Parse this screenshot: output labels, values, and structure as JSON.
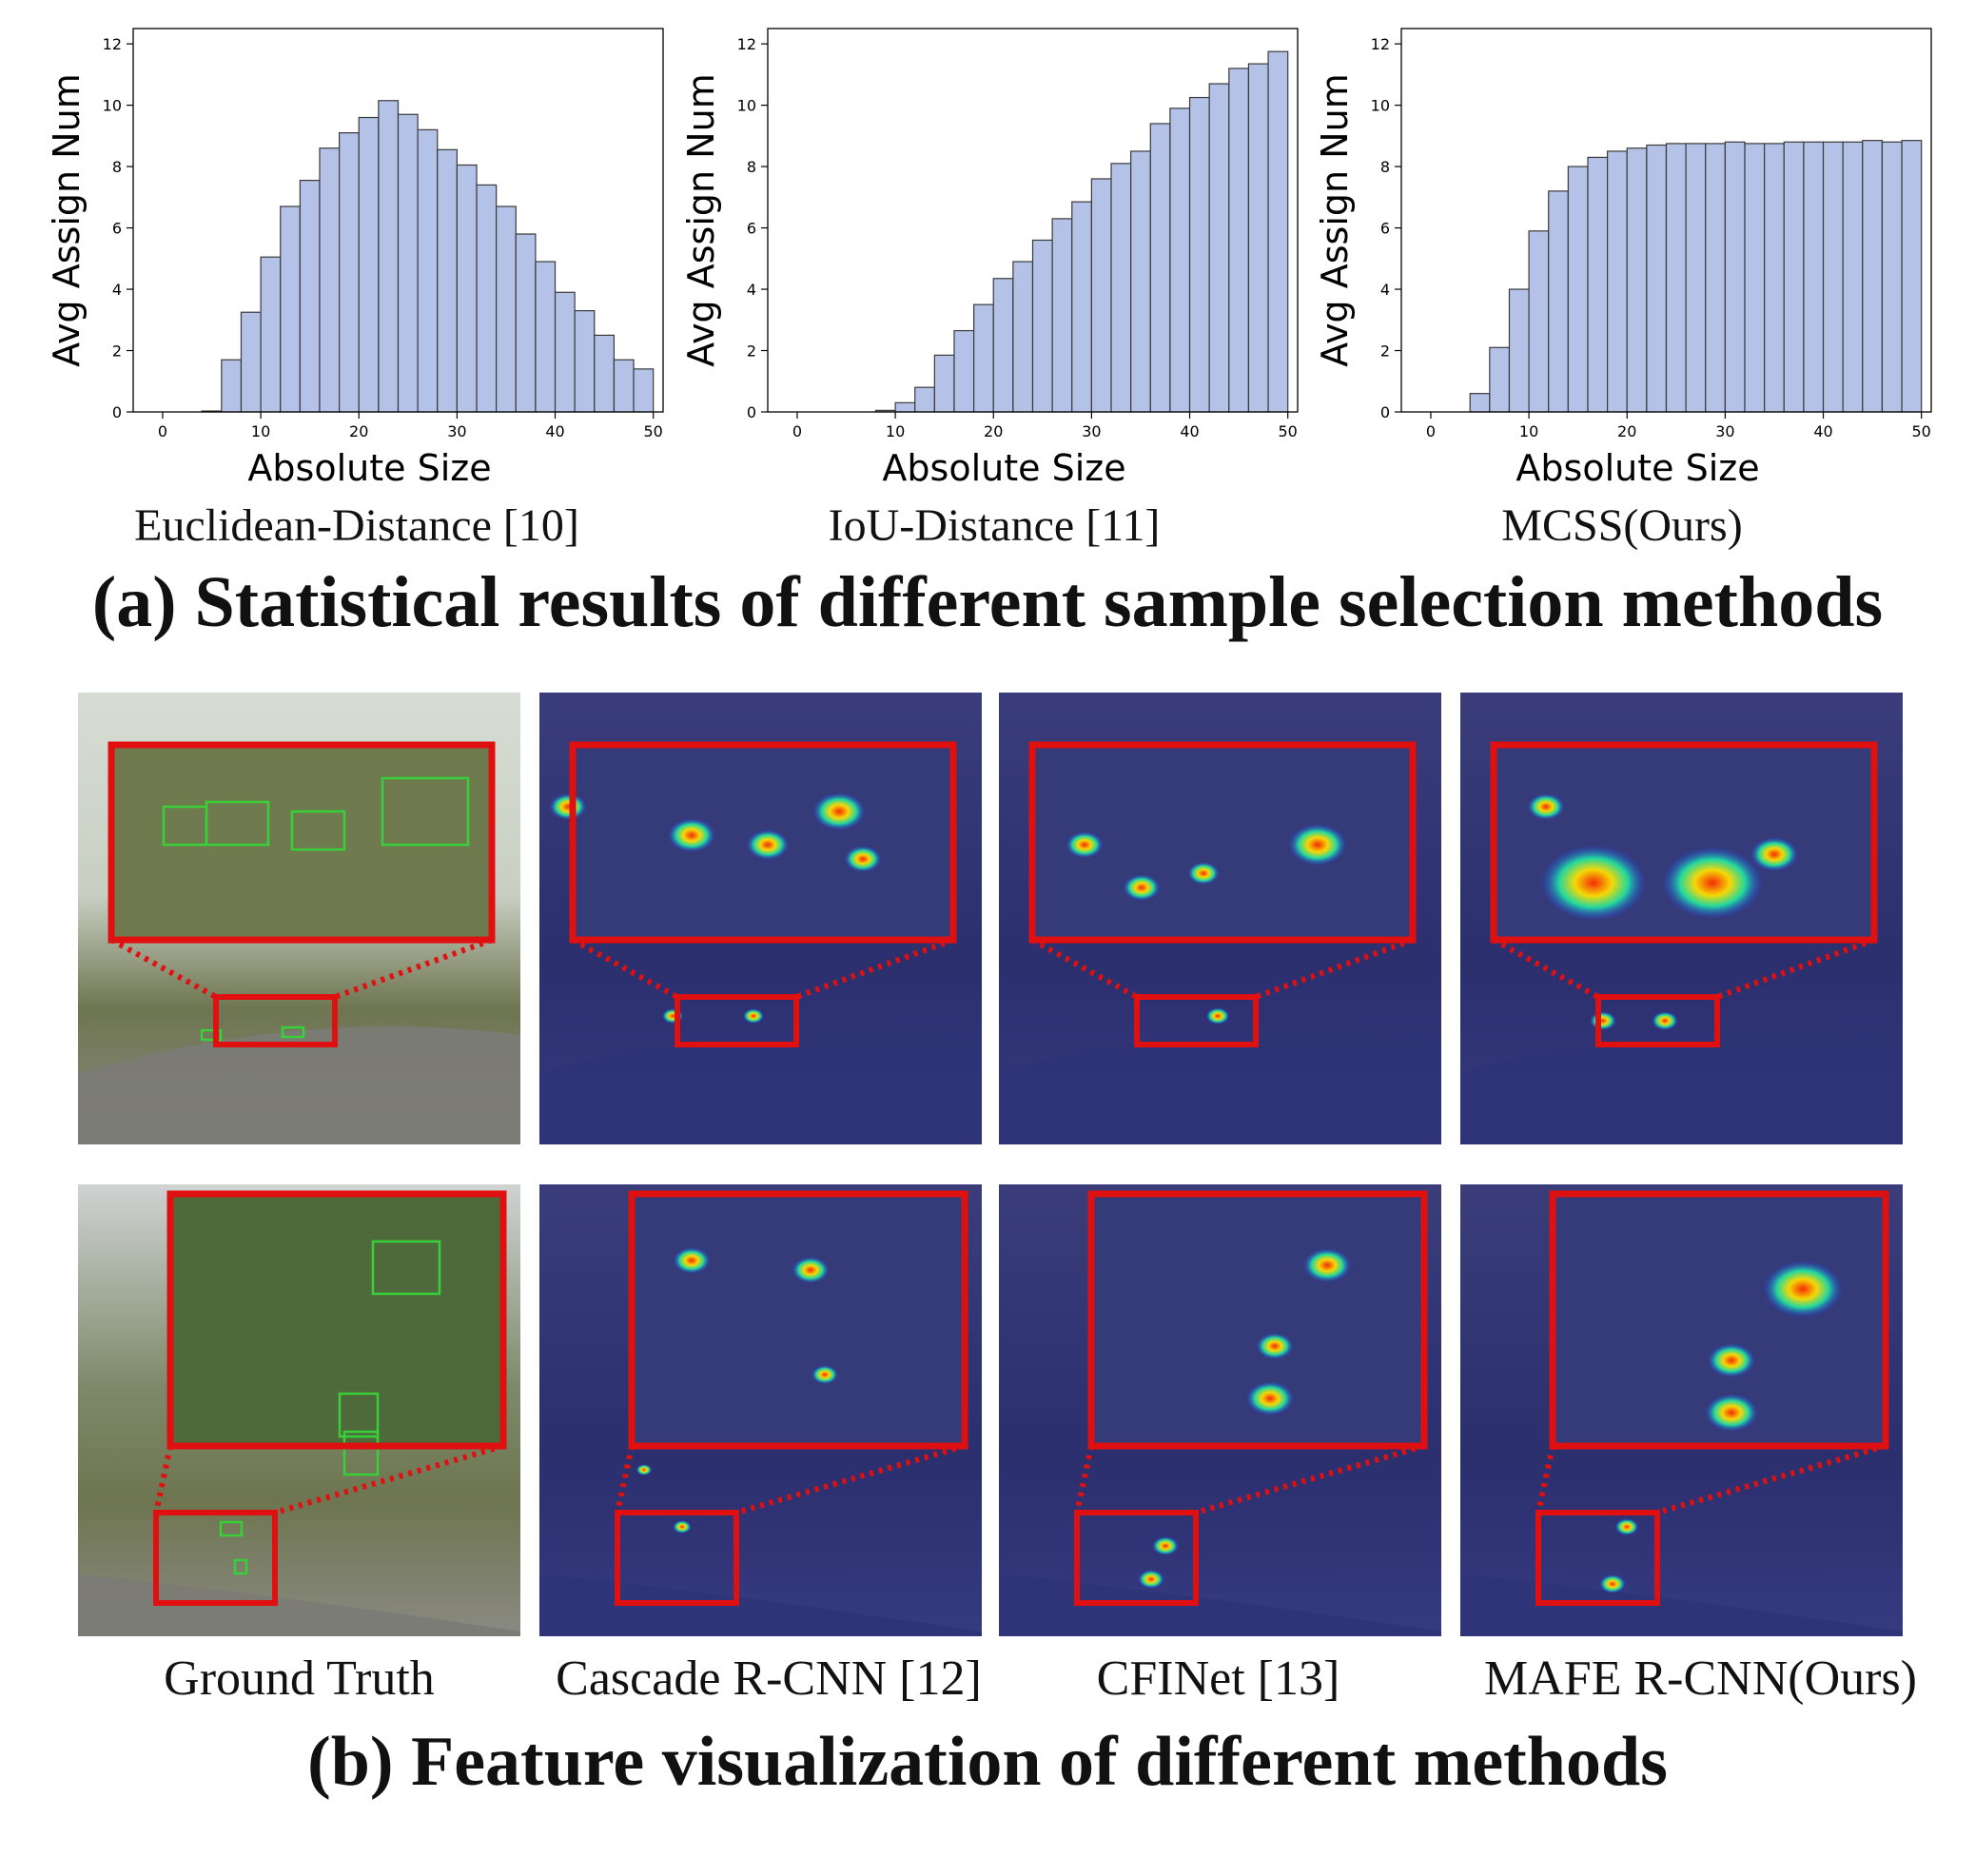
{
  "figure_a": {
    "title": "(a) Statistical results of different sample selection methods",
    "captions": [
      "Euclidean-Distance [10]",
      "IoU-Distance [11]",
      "MCSS(Ours)"
    ]
  },
  "figure_b": {
    "title": "(b) Feature visualization of different methods",
    "captions": [
      "Ground Truth",
      "Cascade R-CNN [12]",
      "CFINet [13]",
      "MAFE R-CNN(Ours)"
    ]
  },
  "colors": {
    "bar_fill": "#b3c2e6",
    "bar_stroke": "#3a3a3a",
    "zoom_box": "#e01010",
    "gt_box": "#38d038",
    "heatmap_bg": "#2b2f6e"
  },
  "chart_data": [
    {
      "type": "bar",
      "title": "",
      "xlabel": "Absolute Size",
      "ylabel": "Avg Assign Num",
      "xlim": [
        -3,
        51
      ],
      "ylim": [
        0,
        12.5
      ],
      "xticks": [
        "0",
        "10",
        "20",
        "30",
        "40",
        "50"
      ],
      "yticks": [
        "0",
        "2",
        "4",
        "6",
        "8",
        "10",
        "12"
      ],
      "bin_width": 2,
      "bin_starts": [
        0,
        2,
        4,
        6,
        8,
        10,
        12,
        14,
        16,
        18,
        20,
        22,
        24,
        26,
        28,
        30,
        32,
        34,
        36,
        38,
        40,
        42,
        44,
        46,
        48
      ],
      "values": [
        0,
        0,
        0.03,
        1.7,
        3.25,
        5.05,
        6.7,
        7.55,
        8.6,
        9.1,
        9.6,
        10.15,
        9.7,
        9.2,
        8.55,
        8.05,
        7.4,
        6.7,
        5.8,
        4.9,
        3.9,
        3.3,
        2.5,
        1.7,
        1.4
      ]
    },
    {
      "type": "bar",
      "title": "",
      "xlabel": "Absolute Size",
      "ylabel": "Avg Assign Num",
      "xlim": [
        -3,
        51
      ],
      "ylim": [
        0,
        12.5
      ],
      "xticks": [
        "0",
        "10",
        "20",
        "30",
        "40",
        "50"
      ],
      "yticks": [
        "0",
        "2",
        "4",
        "6",
        "8",
        "10",
        "12"
      ],
      "bin_width": 2,
      "bin_starts": [
        0,
        2,
        4,
        6,
        8,
        10,
        12,
        14,
        16,
        18,
        20,
        22,
        24,
        26,
        28,
        30,
        32,
        34,
        36,
        38,
        40,
        42,
        44,
        46,
        48
      ],
      "values": [
        0,
        0,
        0,
        0,
        0.05,
        0.3,
        0.8,
        1.85,
        2.65,
        3.5,
        4.35,
        4.9,
        5.6,
        6.3,
        6.85,
        7.6,
        8.1,
        8.5,
        9.4,
        9.9,
        10.25,
        10.7,
        11.2,
        11.35,
        11.75
      ]
    },
    {
      "type": "bar",
      "title": "",
      "xlabel": "Absolute Size",
      "ylabel": "Avg Assign Num",
      "xlim": [
        -3,
        51
      ],
      "ylim": [
        0,
        12.5
      ],
      "xticks": [
        "0",
        "10",
        "20",
        "30",
        "40",
        "50"
      ],
      "yticks": [
        "0",
        "2",
        "4",
        "6",
        "8",
        "10",
        "12"
      ],
      "bin_width": 2,
      "bin_starts": [
        0,
        2,
        4,
        6,
        8,
        10,
        12,
        14,
        16,
        18,
        20,
        22,
        24,
        26,
        28,
        30,
        32,
        34,
        36,
        38,
        40,
        42,
        44,
        46,
        48
      ],
      "values": [
        0,
        0,
        0.6,
        2.1,
        4.0,
        5.9,
        7.2,
        8.0,
        8.3,
        8.5,
        8.6,
        8.7,
        8.75,
        8.75,
        8.75,
        8.8,
        8.75,
        8.75,
        8.8,
        8.8,
        8.8,
        8.8,
        8.85,
        8.8,
        8.85
      ]
    }
  ]
}
